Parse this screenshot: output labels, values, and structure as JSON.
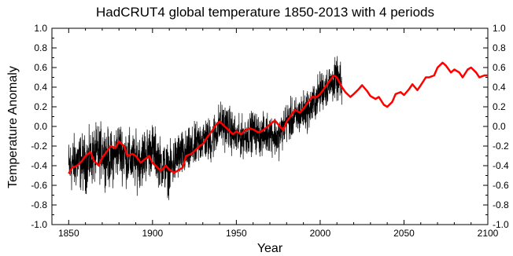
{
  "chart_data": {
    "type": "line",
    "title": "HadCRUT4 global temperature 1850-2013 with 4 periods",
    "xlabel": "Year",
    "ylabel": "Temperature Anomaly",
    "xlim": [
      1840,
      2100
    ],
    "ylim": [
      -1.0,
      1.0
    ],
    "x_ticks": [
      1850,
      1900,
      1950,
      2000,
      2050,
      2100
    ],
    "y_ticks": [
      -1.0,
      -0.8,
      -0.6,
      -0.4,
      -0.2,
      0.0,
      0.2,
      0.4,
      0.6,
      0.8,
      1.0
    ],
    "y_tick_labels_left": [
      "-1.0",
      "-0.8",
      "-0.6",
      "-0.4",
      "-0.2",
      "0.0",
      "0.2",
      "0.4",
      "0.6",
      "0.8",
      "1.0"
    ],
    "y_tick_labels_right": [
      "-1.0",
      "-0.8",
      "-0.6",
      "-0.4",
      "-0.2",
      "0.0",
      "0.2",
      "0.4",
      "0.6",
      "0.8",
      "1.0"
    ],
    "grid": false,
    "series": [
      {
        "color": "#000000",
        "x": [
          1850,
          1855,
          1860,
          1865,
          1870,
          1875,
          1880,
          1885,
          1890,
          1895,
          1900,
          1905,
          1910,
          1915,
          1920,
          1925,
          1930,
          1935,
          1940,
          1945,
          1950,
          1955,
          1960,
          1965,
          1970,
          1975,
          1980,
          1985,
          1990,
          1995,
          2000,
          2005,
          2010,
          2013
        ],
        "values": [
          -0.42,
          -0.35,
          -0.38,
          -0.3,
          -0.25,
          -0.35,
          -0.22,
          -0.32,
          -0.36,
          -0.3,
          -0.22,
          -0.38,
          -0.45,
          -0.3,
          -0.28,
          -0.22,
          -0.12,
          -0.15,
          0.02,
          0.0,
          -0.12,
          -0.1,
          -0.05,
          -0.1,
          -0.05,
          -0.12,
          0.05,
          0.08,
          0.15,
          0.2,
          0.35,
          0.42,
          0.48,
          0.4
        ],
        "spread": [
          0.25,
          0.25,
          0.25,
          0.25,
          0.25,
          0.25,
          0.25,
          0.25,
          0.25,
          0.25,
          0.22,
          0.22,
          0.22,
          0.22,
          0.2,
          0.2,
          0.2,
          0.2,
          0.2,
          0.2,
          0.18,
          0.18,
          0.18,
          0.18,
          0.18,
          0.18,
          0.18,
          0.18,
          0.18,
          0.18,
          0.18,
          0.18,
          0.18,
          0.18
        ]
      },
      {
        "color": "#ff0000",
        "x": [
          1850,
          1852,
          1855,
          1858,
          1860,
          1863,
          1865,
          1868,
          1870,
          1873,
          1875,
          1878,
          1880,
          1883,
          1885,
          1888,
          1890,
          1893,
          1895,
          1898,
          1900,
          1903,
          1905,
          1908,
          1910,
          1913,
          1915,
          1918,
          1920,
          1923,
          1925,
          1928,
          1930,
          1933,
          1935,
          1938,
          1940,
          1943,
          1945,
          1948,
          1950,
          1953,
          1955,
          1958,
          1960,
          1963,
          1965,
          1968,
          1970,
          1973,
          1975,
          1978,
          1980,
          1983,
          1985,
          1988,
          1990,
          1993,
          1995,
          1998,
          2000,
          2003,
          2005,
          2008,
          2010,
          2013,
          2015,
          2018,
          2020,
          2023,
          2025,
          2028,
          2030,
          2033,
          2035,
          2038,
          2040,
          2043,
          2045,
          2048,
          2050,
          2053,
          2055,
          2058,
          2060,
          2063,
          2065,
          2068,
          2070,
          2073,
          2075,
          2078,
          2080,
          2083,
          2085,
          2088,
          2090,
          2093,
          2095,
          2098,
          2100
        ],
        "values": [
          -0.48,
          -0.42,
          -0.4,
          -0.35,
          -0.3,
          -0.26,
          -0.35,
          -0.4,
          -0.32,
          -0.25,
          -0.2,
          -0.22,
          -0.15,
          -0.2,
          -0.3,
          -0.28,
          -0.3,
          -0.37,
          -0.34,
          -0.3,
          -0.37,
          -0.42,
          -0.45,
          -0.4,
          -0.44,
          -0.47,
          -0.45,
          -0.42,
          -0.3,
          -0.28,
          -0.25,
          -0.2,
          -0.18,
          -0.1,
          -0.06,
          0.02,
          0.05,
          0.0,
          -0.03,
          -0.08,
          -0.05,
          -0.08,
          -0.04,
          -0.02,
          -0.03,
          -0.06,
          -0.05,
          -0.01,
          0.02,
          0.06,
          0.02,
          -0.04,
          0.05,
          0.12,
          0.17,
          0.14,
          0.18,
          0.25,
          0.3,
          0.3,
          0.33,
          0.4,
          0.45,
          0.52,
          0.5,
          0.4,
          0.35,
          0.3,
          0.33,
          0.38,
          0.42,
          0.36,
          0.31,
          0.28,
          0.3,
          0.22,
          0.2,
          0.25,
          0.33,
          0.35,
          0.32,
          0.38,
          0.43,
          0.37,
          0.42,
          0.5,
          0.5,
          0.52,
          0.6,
          0.65,
          0.62,
          0.55,
          0.58,
          0.55,
          0.5,
          0.58,
          0.6,
          0.55,
          0.5,
          0.52,
          0.52
        ]
      }
    ]
  }
}
